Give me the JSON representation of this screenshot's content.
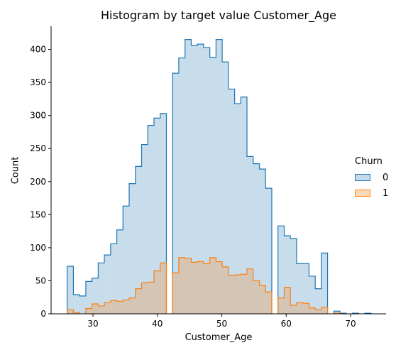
{
  "chart_data": {
    "type": "histogram",
    "title": "Histogram by target value Customer_Age",
    "xlabel": "Customer_Age",
    "ylabel": "Count",
    "xlim": [
      23.5,
      75.5
    ],
    "ylim": [
      0,
      435
    ],
    "xticks": [
      30,
      40,
      50,
      60,
      70
    ],
    "yticks": [
      0,
      50,
      100,
      150,
      200,
      250,
      300,
      350,
      400
    ],
    "bin_edges": [
      26,
      26.96,
      27.92,
      28.89,
      29.85,
      30.81,
      31.77,
      32.74,
      33.7,
      34.66,
      35.62,
      36.59,
      37.55,
      38.51,
      39.47,
      40.44,
      41.4,
      42.36,
      43.32,
      44.29,
      45.25,
      46.21,
      47.17,
      48.14,
      49.1,
      50.06,
      51.02,
      51.99,
      52.95,
      53.91,
      54.87,
      55.84,
      56.8,
      57.76,
      58.72,
      59.69,
      60.65,
      61.61,
      62.57,
      63.54,
      64.5,
      65.46,
      66.42,
      67.39,
      68.35,
      69.31,
      70.27,
      71.24,
      72.2,
      73.16
    ],
    "series": [
      {
        "name": "0",
        "color": "#1f77b4",
        "fill": "#c5d9ec",
        "values": [
          72,
          29,
          27,
          49,
          54,
          77,
          89,
          106,
          127,
          163,
          197,
          223,
          256,
          285,
          296,
          303,
          0,
          364,
          387,
          415,
          406,
          408,
          403,
          388,
          415,
          381,
          340,
          318,
          328,
          238,
          227,
          219,
          190,
          0,
          133,
          118,
          114,
          76,
          76,
          57,
          38,
          92,
          0,
          4,
          1,
          0,
          1,
          0,
          1
        ]
      },
      {
        "name": "1",
        "color": "#ff7f0e",
        "fill": "#ffd9b8",
        "values": [
          6,
          2,
          0,
          8,
          15,
          12,
          17,
          20,
          19,
          21,
          24,
          38,
          47,
          48,
          65,
          77,
          0,
          62,
          85,
          84,
          78,
          79,
          76,
          85,
          79,
          71,
          58,
          59,
          60,
          68,
          50,
          43,
          33,
          0,
          24,
          40,
          13,
          17,
          16,
          9,
          6,
          10,
          0,
          1,
          0,
          0,
          0,
          0,
          0
        ]
      }
    ],
    "legend": {
      "title": "Churn",
      "placement": "right",
      "entries": [
        "0",
        "1"
      ]
    }
  }
}
